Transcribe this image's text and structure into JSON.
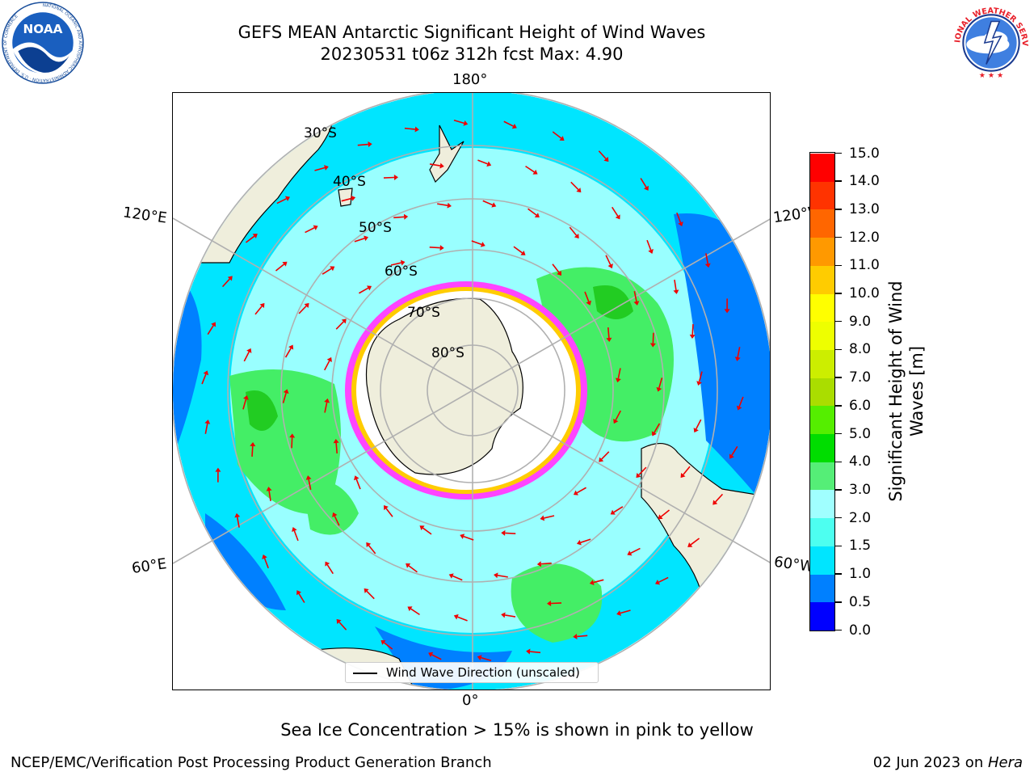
{
  "header": {
    "title_line1": "GEFS MEAN Antarctic Significant Height of Wind Waves",
    "title_line2": "20230531 t06z 312h fcst   Max: 4.90"
  },
  "logos": {
    "noaa": {
      "icon": "noaa-logo",
      "text": "NOAA",
      "ring_text": "NATIONAL OCEANIC AND ATMOSPHERIC ADMINISTRATION · U.S. DEPARTMENT OF COMMERCE"
    },
    "nws": {
      "icon": "nws-logo",
      "ring_text": "NATIONAL WEATHER SERVICE"
    }
  },
  "map": {
    "projection": "south-polar-stereographic",
    "longitude_labels": {
      "top": "180°",
      "bottom": "0°",
      "upper_left": "120°E",
      "upper_right": "120°W",
      "lower_left": "60°E",
      "lower_right": "60°W"
    },
    "latitude_labels": [
      "30°S",
      "40°S",
      "50°S",
      "60°S",
      "70°S",
      "80°S"
    ],
    "colors": {
      "land": "#efeedc",
      "ocean_shallow": "#99ffff",
      "ocean_low": "#00e5ff",
      "ocean_mid": "#4dffe6",
      "green_high": "#44ee66",
      "green_peak": "#22cc22",
      "blue_deep": "#0080ff",
      "sea_ice_pink": "#ff44ff",
      "sea_ice_yellow": "#ffcc00",
      "arrow": "#ee0000",
      "grid": "#b0b0b0"
    }
  },
  "colorbar": {
    "label": "Significant Height of Wind Waves [m]",
    "levels": [
      "0.0",
      "0.5",
      "1.0",
      "1.5",
      "2.0",
      "3.0",
      "4.0",
      "5.0",
      "6.0",
      "7.0",
      "8.0",
      "9.0",
      "10.0",
      "11.0",
      "12.0",
      "13.0",
      "14.0",
      "15.0"
    ],
    "colors": [
      "#0000ff",
      "#0080ff",
      "#00e5ff",
      "#4dfff0",
      "#a0ffff",
      "#55ee77",
      "#00dd00",
      "#55ee00",
      "#aadd00",
      "#ccee00",
      "#eeff00",
      "#ffff00",
      "#ffcc00",
      "#ff9900",
      "#ff6600",
      "#ff3300",
      "#ff0000"
    ]
  },
  "legend": {
    "text": "Wind Wave Direction (unscaled)"
  },
  "caption": "Sea Ice Concentration > 15% is shown in pink to yellow",
  "footer": {
    "left": "NCEP/EMC/Verification Post Processing Product Generation Branch",
    "right_date": "02 Jun 2023 on ",
    "right_system": "Hera"
  }
}
